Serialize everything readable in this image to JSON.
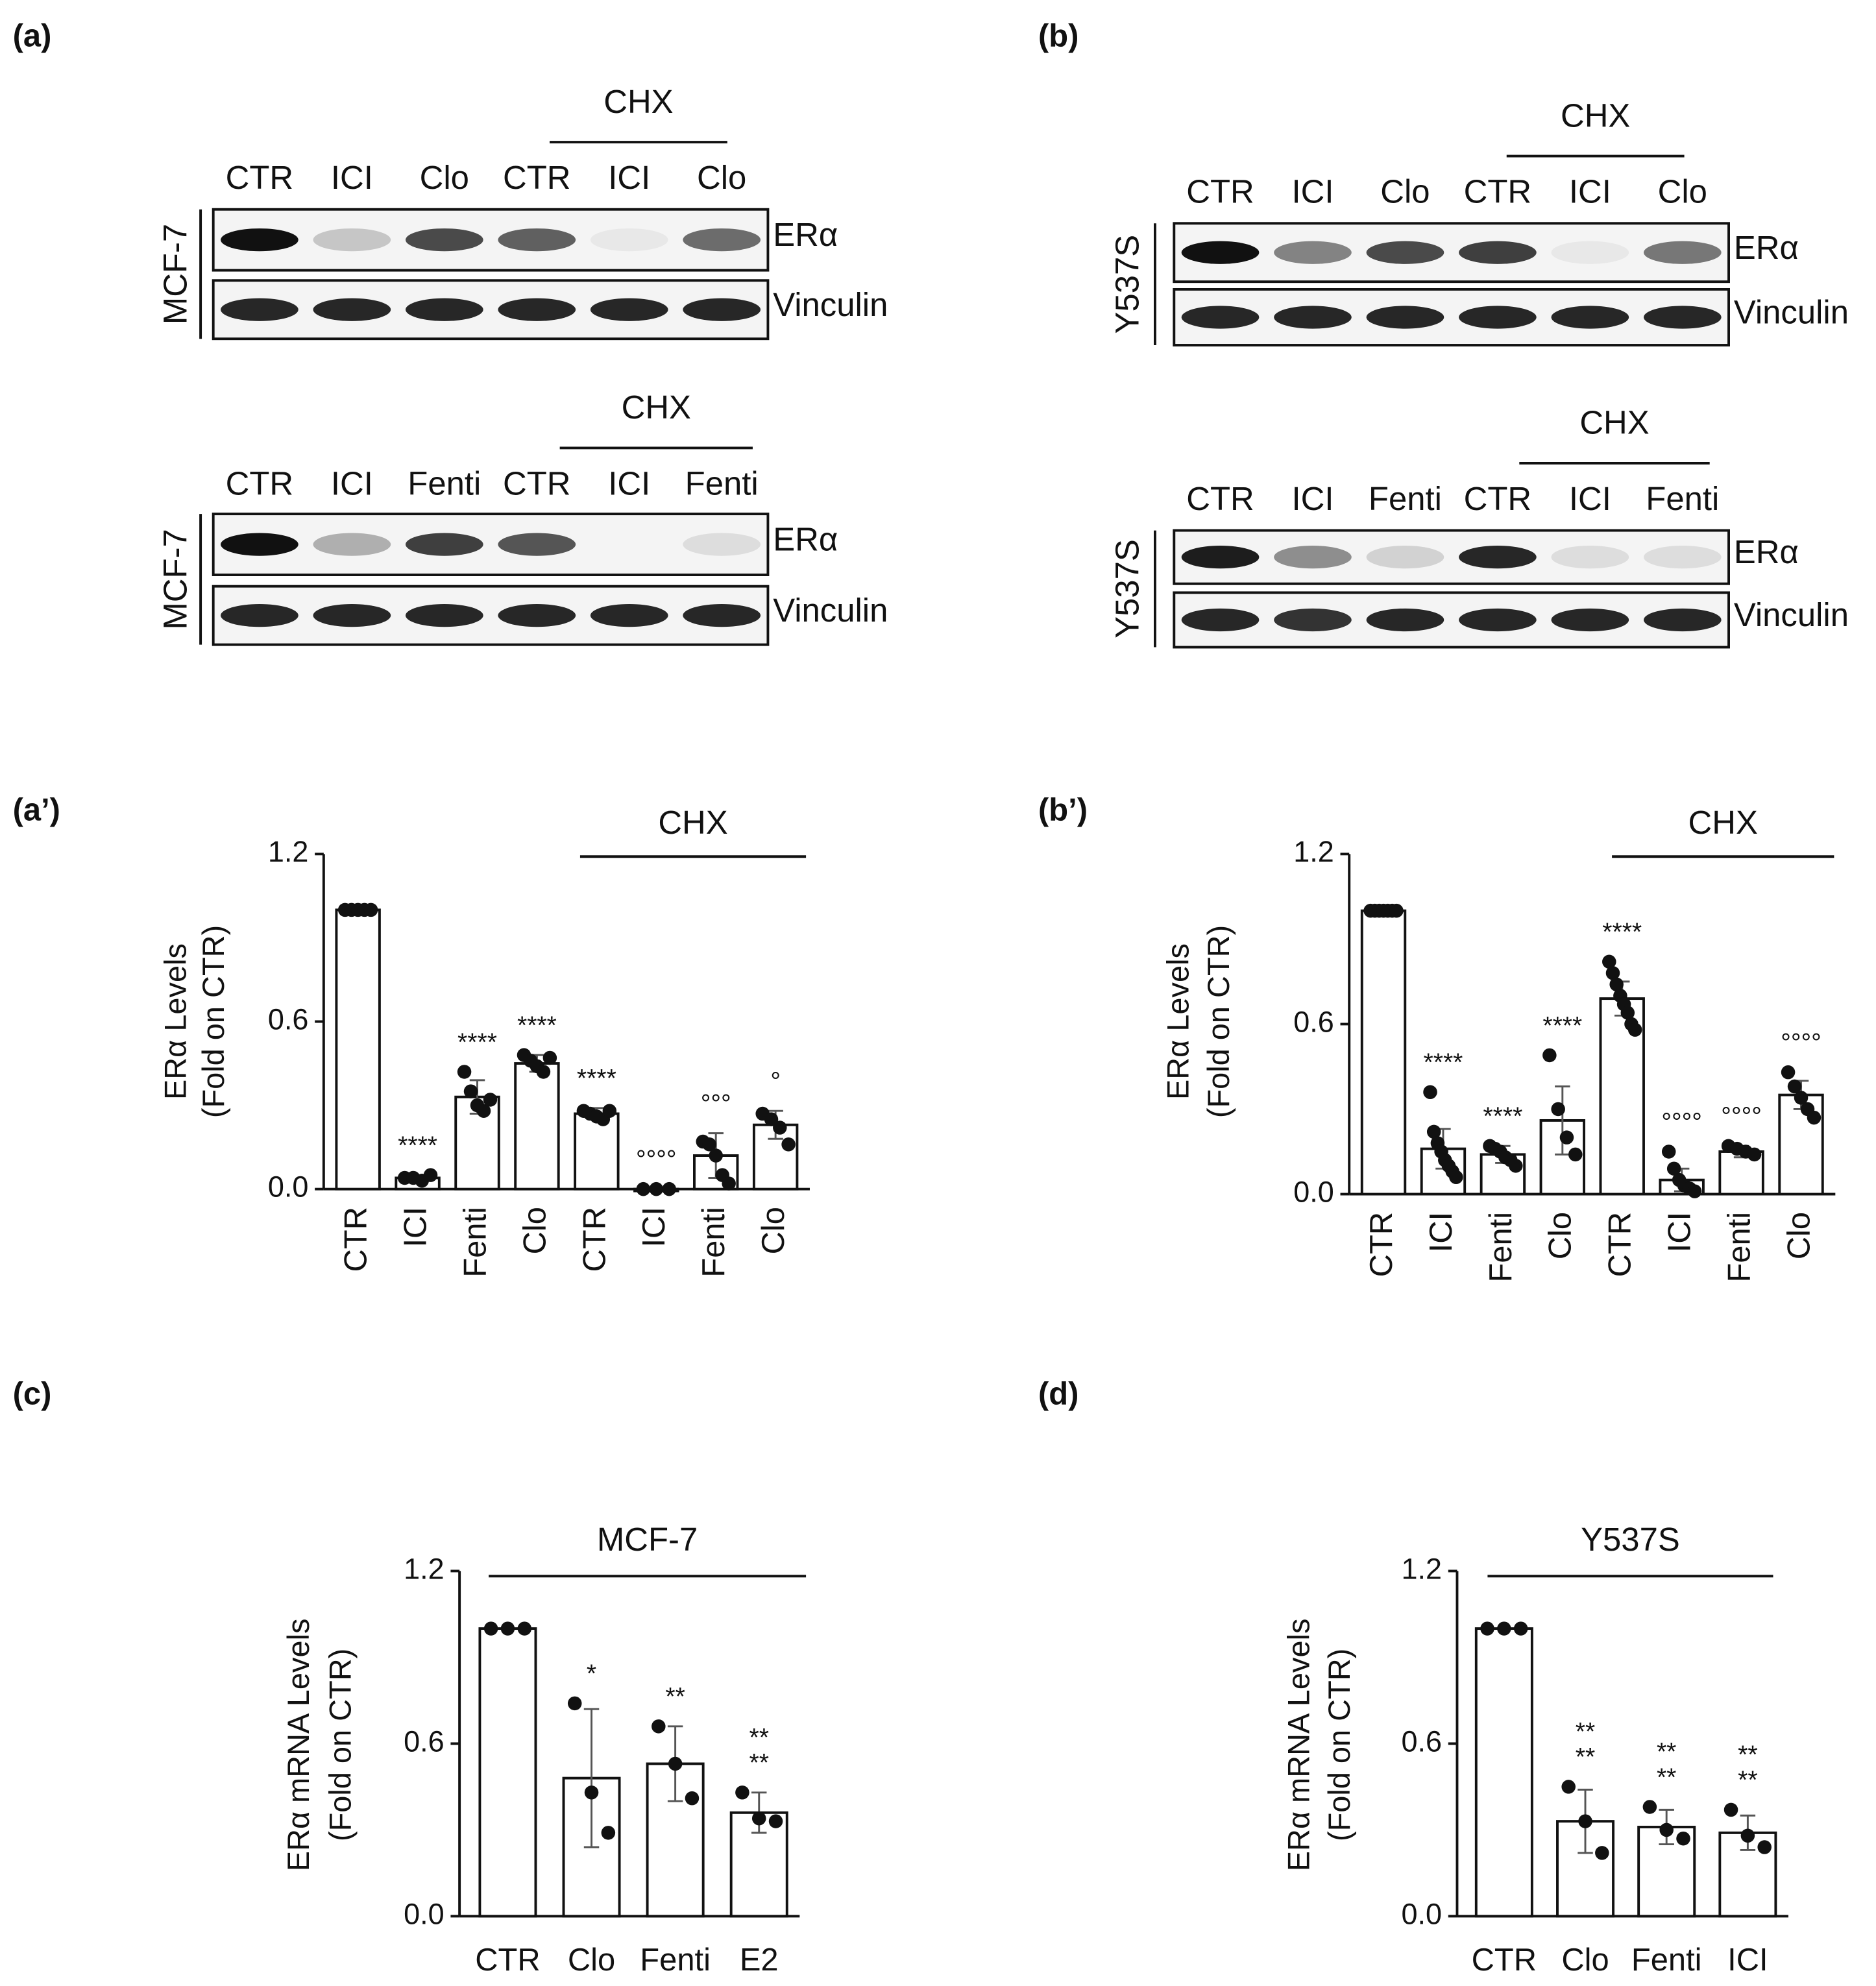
{
  "blots": {
    "a": {
      "label": "(a)",
      "gels": [
        {
          "treatment": "CHX",
          "cell_line": "MCF-7",
          "lanes": [
            "CTR",
            "ICI",
            "Clo",
            "CTR",
            "ICI",
            "Clo"
          ],
          "rows": [
            {
              "protein": "ERα",
              "intensity": [
                1,
                0.2,
                0.75,
                0.65,
                0.05,
                0.6
              ]
            },
            {
              "protein": "Vinculin",
              "intensity": [
                0.9,
                0.9,
                0.9,
                0.9,
                0.9,
                0.9
              ]
            }
          ]
        },
        {
          "treatment": "CHX",
          "cell_line": "MCF-7",
          "lanes": [
            "CTR",
            "ICI",
            "Fenti",
            "CTR",
            "ICI",
            "Fenti"
          ],
          "rows": [
            {
              "protein": "ERα",
              "intensity": [
                1,
                0.3,
                0.8,
                0.7,
                0,
                0.1
              ]
            },
            {
              "protein": "Vinculin",
              "intensity": [
                0.9,
                0.9,
                0.9,
                0.9,
                0.9,
                0.9
              ]
            }
          ]
        }
      ]
    },
    "b": {
      "label": "(b)",
      "gels": [
        {
          "treatment": "CHX",
          "cell_line": "Y537S",
          "lanes": [
            "CTR",
            "ICI",
            "Clo",
            "CTR",
            "ICI",
            "Clo"
          ],
          "rows": [
            {
              "protein": "ERα",
              "intensity": [
                1,
                0.5,
                0.75,
                0.8,
                0.05,
                0.55
              ]
            },
            {
              "protein": "Vinculin",
              "intensity": [
                0.9,
                0.9,
                0.9,
                0.9,
                0.9,
                0.9
              ]
            }
          ]
        },
        {
          "treatment": "CHX",
          "cell_line": "Y537S",
          "lanes": [
            "CTR",
            "ICI",
            "Fenti",
            "CTR",
            "ICI",
            "Fenti"
          ],
          "rows": [
            {
              "protein": "ERα",
              "intensity": [
                0.95,
                0.45,
                0.15,
                0.9,
                0.1,
                0.1
              ]
            },
            {
              "protein": "Vinculin",
              "intensity": [
                0.9,
                0.85,
                0.9,
                0.9,
                0.9,
                0.9
              ]
            }
          ]
        }
      ]
    }
  },
  "chart_data": [
    {
      "type": "bar",
      "panel_label": "(a’)",
      "y_label": [
        "ERα Levels",
        "(Fold on CTR)"
      ],
      "group_label": "CHX",
      "categories": [
        "CTR",
        "ICI",
        "Fenti",
        "Clo",
        "CTR",
        "ICI",
        "Fenti",
        "Clo"
      ],
      "values": [
        1.0,
        0.04,
        0.33,
        0.45,
        0.27,
        0.0,
        0.12,
        0.23
      ],
      "errors": [
        0,
        0.01,
        0.06,
        0.03,
        0.02,
        0,
        0.08,
        0.05
      ],
      "points": [
        [
          1,
          1,
          1,
          1,
          1
        ],
        [
          0.04,
          0.04,
          0.03,
          0.05
        ],
        [
          0.42,
          0.35,
          0.3,
          0.28,
          0.32
        ],
        [
          0.48,
          0.46,
          0.44,
          0.42,
          0.47
        ],
        [
          0.28,
          0.27,
          0.26,
          0.25,
          0.28
        ],
        [
          0,
          0,
          0
        ],
        [
          0.17,
          0.16,
          0.12,
          0.05,
          0.02
        ],
        [
          0.27,
          0.25,
          0.22,
          0.16
        ]
      ],
      "annotations": [
        null,
        [
          "****"
        ],
        [
          "****"
        ],
        [
          "****"
        ],
        [
          "****"
        ],
        [
          "°°°°"
        ],
        [
          "°°°"
        ],
        [
          "°"
        ]
      ],
      "ylim": [
        0,
        1.2
      ],
      "yticks": [
        {
          "value": 0,
          "label": "0.0"
        },
        0.6,
        1.2
      ]
    },
    {
      "type": "bar",
      "panel_label": "(b’)",
      "y_label": [
        "ERα Levels",
        "(Fold on CTR)"
      ],
      "group_label": "CHX",
      "categories": [
        "CTR",
        "ICI",
        "Fenti",
        "Clo",
        "CTR",
        "ICI",
        "Fenti",
        "Clo"
      ],
      "values": [
        1.0,
        0.16,
        0.14,
        0.26,
        0.69,
        0.05,
        0.15,
        0.35
      ],
      "errors": [
        0,
        0.07,
        0.03,
        0.12,
        0.06,
        0.04,
        0.02,
        0.05
      ],
      "points": [
        [
          1,
          1,
          1,
          1,
          1,
          1,
          1
        ],
        [
          0.36,
          0.22,
          0.18,
          0.15,
          0.12,
          0.1,
          0.08,
          0.06
        ],
        [
          0.17,
          0.16,
          0.15,
          0.13,
          0.12,
          0.1
        ],
        [
          0.49,
          0.3,
          0.2,
          0.14
        ],
        [
          0.82,
          0.78,
          0.74,
          0.7,
          0.67,
          0.64,
          0.6,
          0.58
        ],
        [
          0.15,
          0.09,
          0.05,
          0.03,
          0.02,
          0.01
        ],
        [
          0.17,
          0.16,
          0.15,
          0.14
        ],
        [
          0.43,
          0.38,
          0.34,
          0.3,
          0.27
        ]
      ],
      "annotations": [
        null,
        [
          "****"
        ],
        [
          "****"
        ],
        [
          "****"
        ],
        [
          "****"
        ],
        [
          "°°°°"
        ],
        [
          "°°°°"
        ],
        [
          "°°°°"
        ]
      ],
      "ylim": [
        0,
        1.2
      ],
      "yticks": [
        {
          "value": 0,
          "label": "0.0"
        },
        0.6,
        1.2
      ]
    },
    {
      "type": "bar",
      "panel_label": "(c)",
      "y_label": [
        "ERα mRNA Levels",
        "(Fold on CTR)"
      ],
      "group_label": "MCF-7",
      "categories": [
        "CTR",
        "Clo",
        "Fenti",
        "E2"
      ],
      "values": [
        1.0,
        0.48,
        0.53,
        0.36
      ],
      "errors": [
        0,
        0.24,
        0.13,
        0.07
      ],
      "points": [
        [
          1,
          1,
          1
        ],
        [
          0.74,
          0.43,
          0.29
        ],
        [
          0.66,
          0.53,
          0.41
        ],
        [
          0.43,
          0.34,
          0.33
        ]
      ],
      "annotations": [
        null,
        [
          "*"
        ],
        [
          "**"
        ],
        [
          "**",
          "**"
        ]
      ],
      "ylim": [
        0,
        1.2
      ],
      "yticks": [
        {
          "value": 0,
          "label": "0.0"
        },
        0.6,
        1.2
      ]
    },
    {
      "type": "bar",
      "panel_label": "(d)",
      "y_label": [
        "ERα mRNA Levels",
        "(Fold on CTR)"
      ],
      "group_label": "Y537S",
      "categories": [
        "CTR",
        "Clo",
        "Fenti",
        "ICI"
      ],
      "values": [
        1.0,
        0.33,
        0.31,
        0.29
      ],
      "errors": [
        0,
        0.11,
        0.06,
        0.06
      ],
      "points": [
        [
          1,
          1,
          1
        ],
        [
          0.45,
          0.33,
          0.22
        ],
        [
          0.38,
          0.3,
          0.27
        ],
        [
          0.37,
          0.28,
          0.24
        ]
      ],
      "annotations": [
        null,
        [
          "**",
          "**"
        ],
        [
          "**",
          "**"
        ],
        [
          "**",
          "**"
        ]
      ],
      "ylim": [
        0,
        1.2
      ],
      "yticks": [
        {
          "value": 0,
          "label": "0.0"
        },
        0.6,
        1.2
      ]
    }
  ]
}
